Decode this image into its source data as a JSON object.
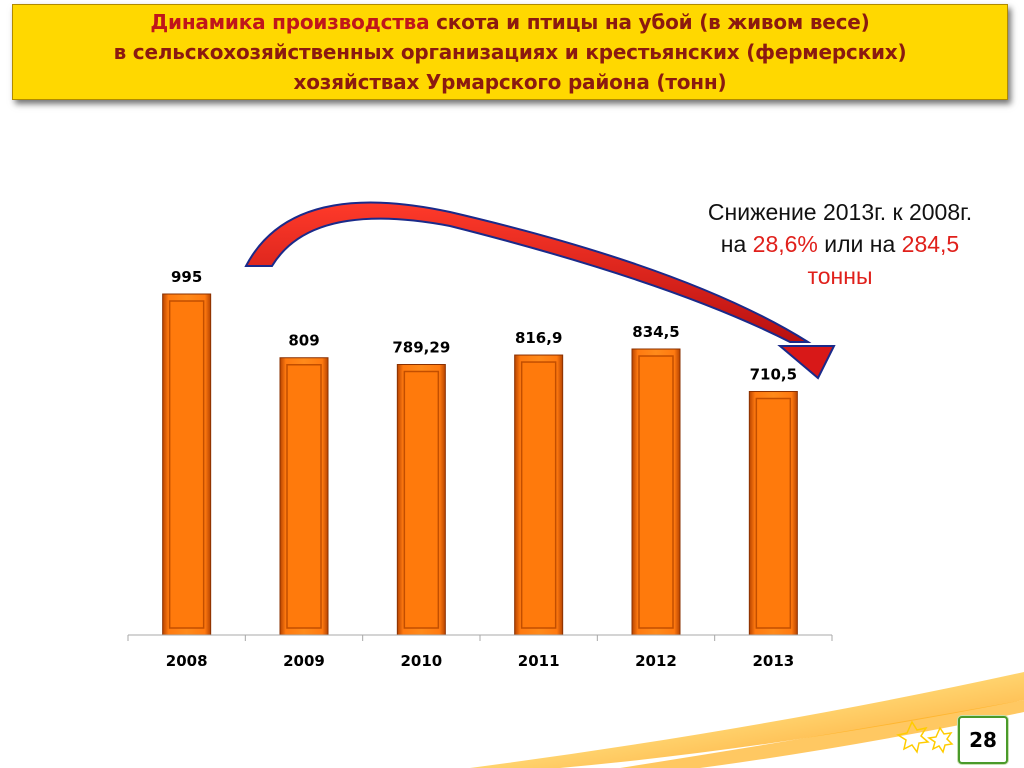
{
  "title": {
    "line1_accent": "Динамика производства",
    "line1_rest": " скота и птицы на убой (в живом весе)",
    "line2": "в сельскохозяйственных организациях и крестьянских (фермерских)",
    "line3": "хозяйствах Урмарского района (тонн)"
  },
  "note": {
    "line1": "Снижение 2013г. к 2008г.",
    "line2_prefix": "на ",
    "percent": "28,6%",
    "line2_middle": " или на ",
    "amount": "284,5",
    "unit": "тонны"
  },
  "page_number": "28",
  "colors": {
    "bar": "#ff6a00",
    "bar_dark": "#a83c00",
    "arrow": "#e01e1e",
    "arrow_outline": "#1a2a8a",
    "title_bg": "#ffd800",
    "title_text": "#8b1a10"
  },
  "chart_data": {
    "type": "bar",
    "categories": [
      "2008",
      "2009",
      "2010",
      "2011",
      "2012",
      "2013"
    ],
    "values": [
      995,
      809,
      789.29,
      816.9,
      834.5,
      710.5
    ],
    "value_labels": [
      "995",
      "809",
      "789,29",
      "816,9",
      "834,5",
      "710,5"
    ],
    "title": "",
    "xlabel": "",
    "ylabel": "",
    "ylim": [
      0,
      1000
    ],
    "grid": false,
    "legend": "none"
  }
}
